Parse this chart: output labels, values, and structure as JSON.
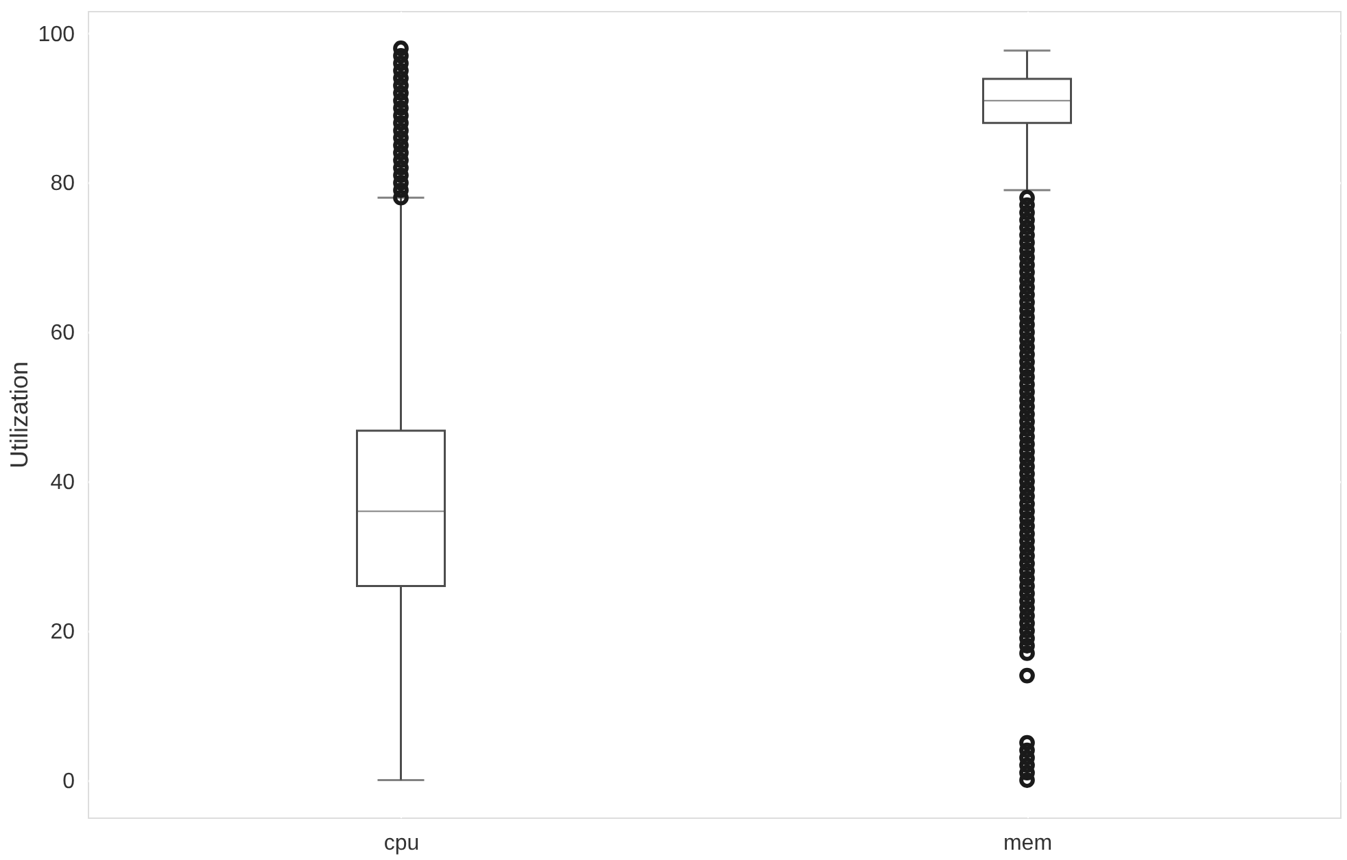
{
  "chart_data": {
    "type": "box",
    "ylabel": "Utilization",
    "categories": [
      "cpu",
      "mem"
    ],
    "ylim": [
      -5,
      103
    ],
    "yticks": [
      0,
      20,
      40,
      60,
      80,
      100
    ],
    "grid": true,
    "series": [
      {
        "color": "#4d4d4d",
        "boxes": [
          {
            "low": 0,
            "q1": 26,
            "median": 36,
            "q3": 46.8,
            "high": 78,
            "outliers": [
              78,
              79,
              80,
              81,
              82,
              83,
              84,
              85,
              86,
              87,
              88,
              89,
              90,
              91,
              92,
              93,
              94,
              95,
              96,
              97,
              98
            ]
          },
          {
            "low": 79,
            "q1": 88,
            "median": 91,
            "q3": 93.9,
            "high": 97.7,
            "outliers": [
              0,
              1,
              2,
              3,
              4,
              5,
              14,
              17,
              18,
              19,
              20,
              21,
              22,
              23,
              24,
              25,
              26,
              27,
              28,
              29,
              30,
              31,
              32,
              33,
              34,
              35,
              36,
              37,
              38,
              39,
              40,
              41,
              42,
              43,
              44,
              45,
              46,
              47,
              48,
              49,
              50,
              51,
              52,
              53,
              54,
              55,
              56,
              57,
              58,
              59,
              60,
              61,
              62,
              63,
              64,
              65,
              66,
              67,
              68,
              69,
              70,
              71,
              72,
              73,
              74,
              75,
              76,
              77,
              78
            ]
          }
        ]
      }
    ]
  }
}
